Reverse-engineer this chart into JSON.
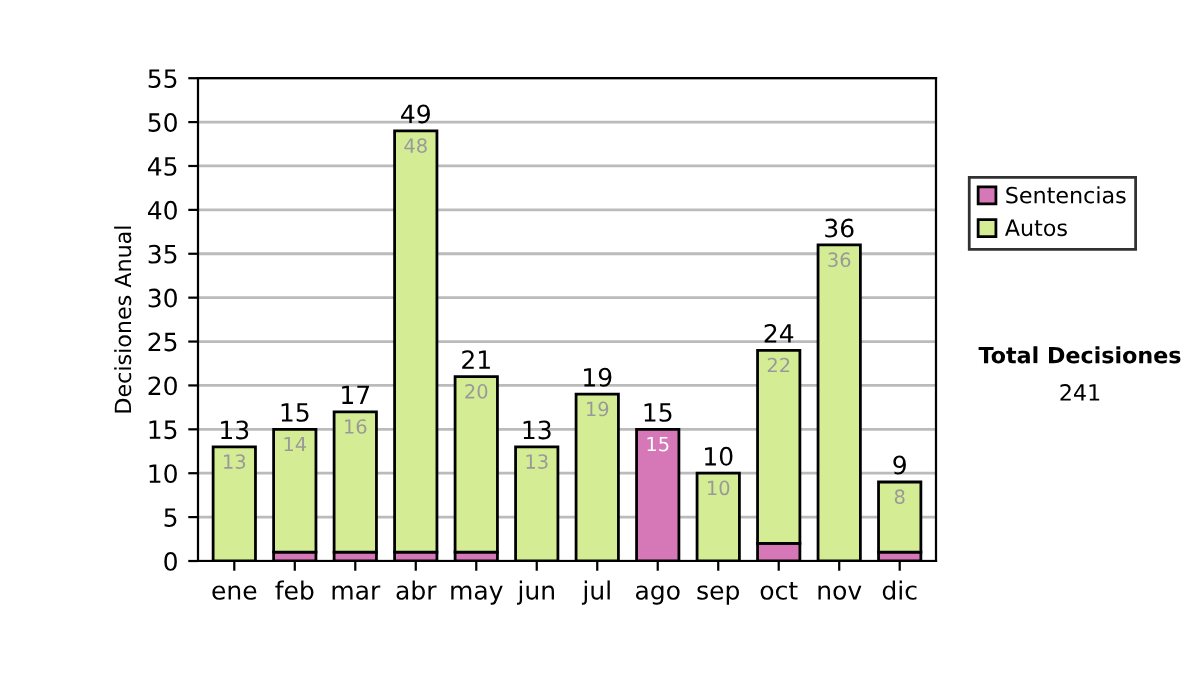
{
  "chart_data": {
    "type": "bar",
    "stacked": true,
    "ylabel": "Decisiones Anual",
    "categories": [
      "ene",
      "feb",
      "mar",
      "abr",
      "may",
      "jun",
      "jul",
      "ago",
      "sep",
      "oct",
      "nov",
      "dic"
    ],
    "series": [
      {
        "name": "Sentencias",
        "color": "#d678b8",
        "values": [
          0,
          1,
          1,
          1,
          1,
          0,
          0,
          15,
          0,
          2,
          0,
          1
        ],
        "value_labels": [
          null,
          null,
          null,
          null,
          null,
          null,
          null,
          "15",
          null,
          null,
          null,
          null
        ]
      },
      {
        "name": "Autos",
        "color": "#d4ec94",
        "values": [
          13,
          14,
          16,
          48,
          20,
          13,
          19,
          null,
          10,
          22,
          36,
          8
        ],
        "value_labels": [
          "13",
          "14",
          "16",
          "48",
          "20",
          "13",
          "19",
          null,
          "10",
          "22",
          "36",
          "8"
        ]
      }
    ],
    "totals": [
      "13",
      "15",
      "17",
      "49",
      "21",
      "13",
      "19",
      "15",
      "10",
      "24",
      "36",
      "9"
    ],
    "ylim": [
      0,
      55
    ],
    "yticks": [
      0,
      5,
      10,
      15,
      20,
      25,
      30,
      35,
      40,
      45,
      50,
      55
    ],
    "grid": "y",
    "legend": "right",
    "annotations": [
      "Total Decisiones",
      "241"
    ]
  }
}
